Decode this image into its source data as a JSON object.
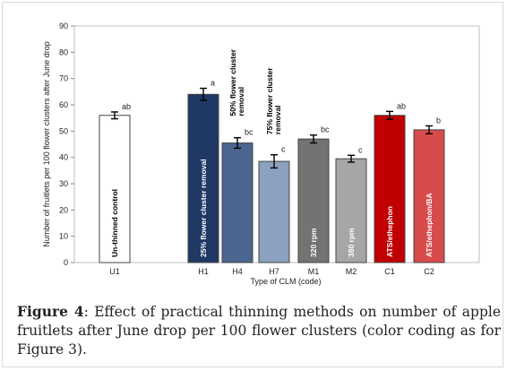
{
  "chart_data": {
    "type": "bar",
    "categories": [
      "U1",
      "H1",
      "H4",
      "H7",
      "M1",
      "M2",
      "C1",
      "C2"
    ],
    "values": [
      56,
      64,
      45.5,
      38.5,
      47,
      39.5,
      56,
      50.5
    ],
    "errors": [
      1.3,
      2.3,
      2.0,
      2.5,
      1.5,
      1.3,
      1.5,
      1.5
    ],
    "letters": [
      "ab",
      "a",
      "bc",
      "c",
      "bc",
      "c",
      "ab",
      "b"
    ],
    "colors": [
      "#ffffff",
      "#1f3864",
      "#4a6690",
      "#8ca0bf",
      "#737373",
      "#a6a6a6",
      "#c00000",
      "#d84b4b"
    ],
    "bar_labels": [
      "Un-thinned control",
      "25% flower cluster removal",
      "",
      "",
      "320 rpm",
      "380 rpm",
      "ATS/ethephon",
      "ATS/ethephon/BA"
    ],
    "outside_labels": [
      "",
      "",
      "50% flower cluster removal",
      "75% flower cluster removal",
      "",
      "",
      "",
      ""
    ],
    "yticks": [
      0,
      10,
      20,
      30,
      40,
      50,
      60,
      70,
      80,
      90
    ],
    "ylim": [
      0,
      90
    ],
    "xlabel": "Type of CLM (code)",
    "ylabel": "Number of fruitlets per 100 flower clusters after June drop",
    "grid": false
  },
  "caption": {
    "label": "Figure 4",
    "text": ": Effect of practical thinning methods on number of apple fruitlets after June drop per 100 flower clusters (color coding as for Figure 3)."
  }
}
